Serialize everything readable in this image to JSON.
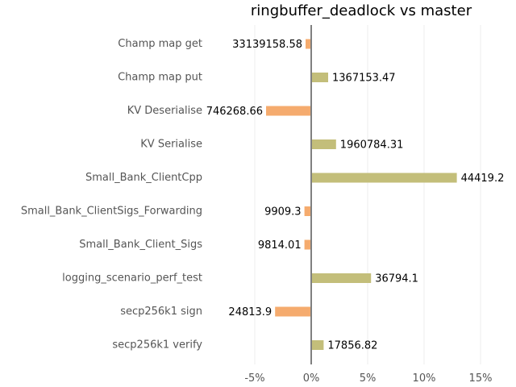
{
  "chart_data": {
    "type": "bar",
    "orientation": "horizontal",
    "title": "ringbuffer_deadlock vs master",
    "xlabel": "",
    "ylabel": "",
    "xlim": [
      -0.07,
      0.16
    ],
    "xticks": [
      -0.05,
      0,
      0.05,
      0.1,
      0.15
    ],
    "xtick_labels": [
      "-5%",
      "0%",
      "5%",
      "10%",
      "15%"
    ],
    "grid": true,
    "categories": [
      "Champ map get",
      "Champ map put",
      "KV Deserialise",
      "KV Serialise",
      "Small_Bank_ClientCpp",
      "Small_Bank_ClientSigs_Forwarding",
      "Small_Bank_Client_Sigs",
      "logging_scenario_perf_test",
      "secp256k1 sign",
      "secp256k1 verify"
    ],
    "values": [
      -0.005,
      0.015,
      -0.04,
      0.022,
      0.129,
      -0.006,
      -0.006,
      0.053,
      -0.032,
      0.011
    ],
    "value_labels": [
      "33139158.58",
      "1367153.47",
      "746268.66",
      "1960784.31",
      "44419.2",
      "9909.3",
      "9814.01",
      "36794.1",
      "24813.9",
      "17856.82"
    ],
    "colors": {
      "positive": "#c3be7a",
      "negative": "#f5ab6e",
      "axis": "#808080",
      "grid": "#eeeeee"
    }
  }
}
